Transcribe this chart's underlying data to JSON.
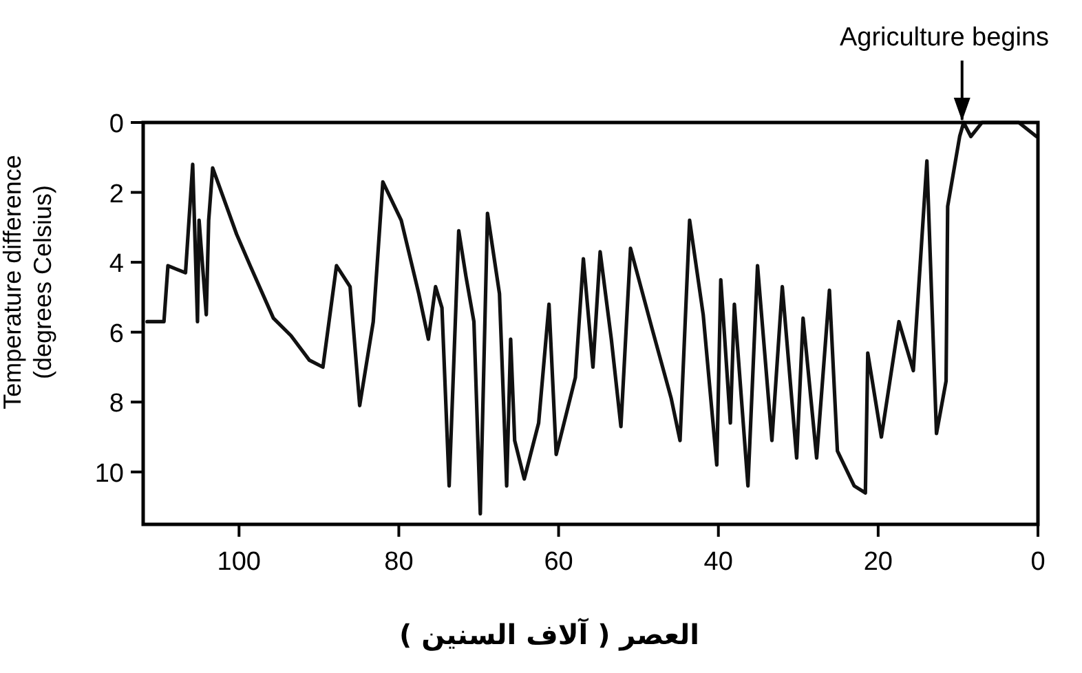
{
  "chart_data": {
    "type": "line",
    "xlabel": "العصر ( آلاف السنين )",
    "ylabel": "Temperature difference\n(degrees Celsius)",
    "xlim": [
      112,
      0
    ],
    "ylim": [
      11.5,
      0
    ],
    "xticks": [
      100,
      80,
      60,
      40,
      20,
      0
    ],
    "yticks": [
      0,
      2,
      4,
      6,
      8,
      10
    ],
    "annotations": [
      {
        "text": "Agriculture begins",
        "x": 9.5,
        "y": 0
      }
    ],
    "series": [
      {
        "color": "#111111",
        "x": [
          111.5,
          109.4,
          108.9,
          106.7,
          105.8,
          105.2,
          105.0,
          104.1,
          103.8,
          103.3,
          100.3,
          98.6,
          95.7,
          93.5,
          91.2,
          89.5,
          87.8,
          86.1,
          84.9,
          83.2,
          82.0,
          79.7,
          77.5,
          76.3,
          75.4,
          74.6,
          73.7,
          72.5,
          71.6,
          70.6,
          69.8,
          68.9,
          67.4,
          66.5,
          66.0,
          65.5,
          64.3,
          62.5,
          61.2,
          60.3,
          57.9,
          56.9,
          55.7,
          54.8,
          53.4,
          52.2,
          51.0,
          48.3,
          45.9,
          44.8,
          43.6,
          41.9,
          40.2,
          39.7,
          38.5,
          38.0,
          36.3,
          35.1,
          33.3,
          32.0,
          30.2,
          29.4,
          27.7,
          26.1,
          25.1,
          23.0,
          21.6,
          21.3,
          19.6,
          17.4,
          15.6,
          13.9,
          12.7,
          11.5,
          11.3,
          9.8,
          9.3,
          8.4,
          7.0,
          2.4,
          0.2
        ],
        "values": [
          5.7,
          5.7,
          4.1,
          4.3,
          1.2,
          5.7,
          2.8,
          5.5,
          2.8,
          1.3,
          3.2,
          4.1,
          5.6,
          6.1,
          6.8,
          7.0,
          4.1,
          4.7,
          8.1,
          5.7,
          1.7,
          2.8,
          4.9,
          6.2,
          4.7,
          5.3,
          10.4,
          3.1,
          4.4,
          5.7,
          11.2,
          2.6,
          4.9,
          10.4,
          6.2,
          9.1,
          10.2,
          8.6,
          5.2,
          9.5,
          7.3,
          3.9,
          7.0,
          3.7,
          6.2,
          8.7,
          3.6,
          5.9,
          7.9,
          9.1,
          2.8,
          5.5,
          9.8,
          4.5,
          8.6,
          5.2,
          10.4,
          4.1,
          9.1,
          4.7,
          9.6,
          5.6,
          9.6,
          4.8,
          9.4,
          10.4,
          10.6,
          6.6,
          9.0,
          5.7,
          7.1,
          1.1,
          8.9,
          7.4,
          2.4,
          0.4,
          0.0,
          0.4,
          0.0,
          0.0,
          0.4
        ]
      }
    ]
  }
}
